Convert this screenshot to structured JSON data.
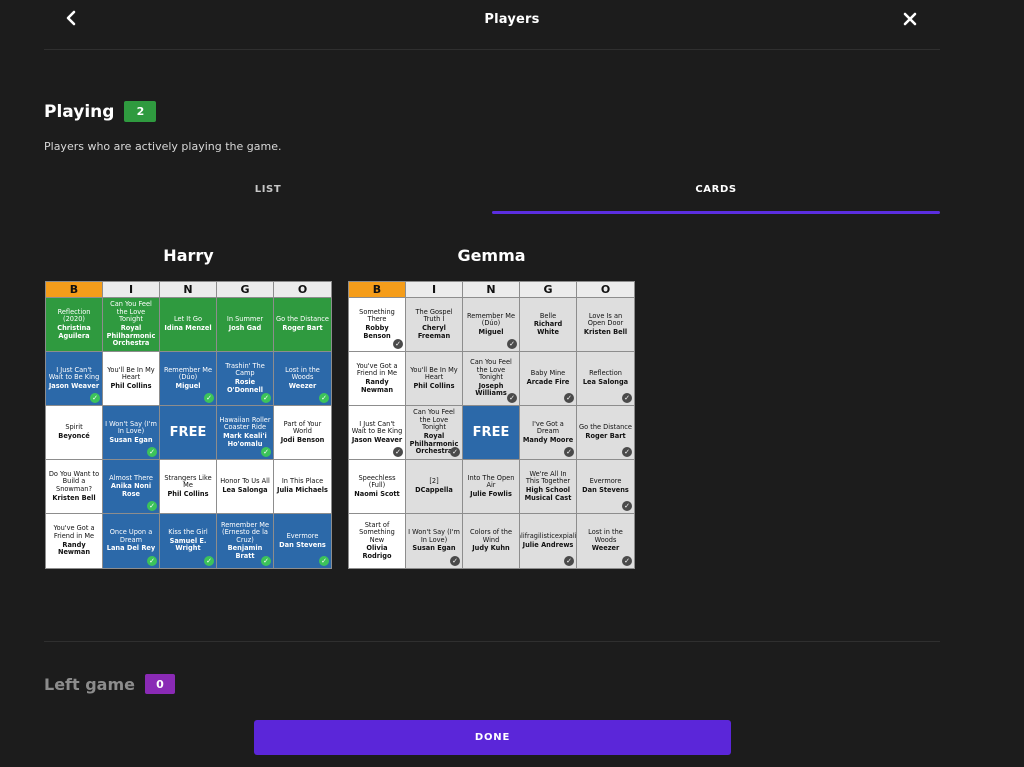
{
  "header": {
    "title": "Players",
    "back_icon": "chevron-left-icon",
    "close_icon": "close-icon"
  },
  "playing": {
    "title": "Playing",
    "count": "2",
    "badge_color": "#2f9a3f",
    "subtitle": "Players who are actively playing the game."
  },
  "tabs": [
    {
      "label": "LIST",
      "active": false
    },
    {
      "label": "CARDS",
      "active": true
    }
  ],
  "accent_color": "#5b2ee0",
  "cards": [
    {
      "player": "Harry",
      "letters": [
        "B",
        "I",
        "N",
        "G",
        "O"
      ],
      "highlighted_letter": "B",
      "cells": [
        {
          "song": "Reflection (2020)",
          "artist": "Christina Aguilera",
          "color": "green",
          "check": false
        },
        {
          "song": "Can You Feel the Love Tonight",
          "artist": "Royal Philharmonic Orchestra",
          "color": "green",
          "check": false
        },
        {
          "song": "Let It Go",
          "artist": "Idina Menzel",
          "color": "green",
          "check": false
        },
        {
          "song": "In Summer",
          "artist": "Josh Gad",
          "color": "green",
          "check": false
        },
        {
          "song": "Go the Distance",
          "artist": "Roger Bart",
          "color": "green",
          "check": false
        },
        {
          "song": "I Just Can't Wait to Be King",
          "artist": "Jason Weaver",
          "color": "blue",
          "check": true
        },
        {
          "song": "You'll Be In My Heart",
          "artist": "Phil Collins",
          "color": "white",
          "check": false
        },
        {
          "song": "Remember Me (Dúo)",
          "artist": "Miguel",
          "color": "blue",
          "check": true
        },
        {
          "song": "Trashin' The Camp",
          "artist": "Rosie O'Donnell",
          "color": "blue",
          "check": true
        },
        {
          "song": "Lost in the Woods",
          "artist": "Weezer",
          "color": "blue",
          "check": true
        },
        {
          "song": "Spirit",
          "artist": "Beyoncé",
          "color": "white",
          "check": false
        },
        {
          "song": "I Won't Say (I'm In Love)",
          "artist": "Susan Egan",
          "color": "blue",
          "check": true
        },
        {
          "song": "",
          "artist": "",
          "free": "FREE",
          "color": "blue",
          "check": false
        },
        {
          "song": "Hawaiian Roller Coaster Ride",
          "artist": "Mark Keali'i Ho'omalu",
          "color": "blue",
          "check": true
        },
        {
          "song": "Part of Your World",
          "artist": "Jodi Benson",
          "color": "white",
          "check": false
        },
        {
          "song": "Do You Want to Build a Snowman?",
          "artist": "Kristen Bell",
          "color": "white",
          "check": false
        },
        {
          "song": "Almost There",
          "artist": "Anika Noni Rose",
          "color": "blue",
          "check": true
        },
        {
          "song": "Strangers Like Me",
          "artist": "Phil Collins",
          "color": "white",
          "check": false
        },
        {
          "song": "Honor To Us All",
          "artist": "Lea Salonga",
          "color": "white",
          "check": false
        },
        {
          "song": "In This Place",
          "artist": "Julia Michaels",
          "color": "white",
          "check": false
        },
        {
          "song": "You've Got a Friend in Me",
          "artist": "Randy Newman",
          "color": "white",
          "check": false
        },
        {
          "song": "Once Upon a Dream",
          "artist": "Lana Del Rey",
          "color": "blue",
          "check": true
        },
        {
          "song": "Kiss the Girl",
          "artist": "Samuel E. Wright",
          "color": "blue",
          "check": true
        },
        {
          "song": "Remember Me (Ernesto de la Cruz)",
          "artist": "Benjamin Bratt",
          "color": "blue",
          "check": true
        },
        {
          "song": "Evermore",
          "artist": "Dan Stevens",
          "color": "blue",
          "check": true
        }
      ]
    },
    {
      "player": "Gemma",
      "letters": [
        "B",
        "I",
        "N",
        "G",
        "O"
      ],
      "highlighted_letter": "B",
      "cells": [
        {
          "song": "Something There",
          "artist": "Robby Benson",
          "color": "white",
          "check": true
        },
        {
          "song": "The Gospel Truth I",
          "artist": "Cheryl Freeman",
          "color": "grey",
          "check": false
        },
        {
          "song": "Remember Me (Dúo)",
          "artist": "Miguel",
          "color": "grey",
          "check": true
        },
        {
          "song": "Belle",
          "artist": "Richard White",
          "color": "grey",
          "check": false
        },
        {
          "song": "Love Is an Open Door",
          "artist": "Kristen Bell",
          "color": "grey",
          "check": false
        },
        {
          "song": "You've Got a Friend in Me",
          "artist": "Randy Newman",
          "color": "white",
          "check": false
        },
        {
          "song": "You'll Be In My Heart",
          "artist": "Phil Collins",
          "color": "grey",
          "check": false
        },
        {
          "song": "Can You Feel the Love Tonight",
          "artist": "Joseph Williams",
          "color": "grey",
          "check": true
        },
        {
          "song": "Baby Mine",
          "artist": "Arcade Fire",
          "color": "grey",
          "check": true
        },
        {
          "song": "Reflection",
          "artist": "Lea Salonga",
          "color": "grey",
          "check": true
        },
        {
          "song": "I Just Can't Wait to Be King",
          "artist": "Jason Weaver",
          "color": "white",
          "check": true
        },
        {
          "song": "Can You Feel the Love Tonight",
          "artist": "Royal Philharmonic Orchestra",
          "color": "grey",
          "check": true
        },
        {
          "song": "",
          "artist": "",
          "free": "FREE",
          "color": "blue",
          "check": false
        },
        {
          "song": "I've Got a Dream",
          "artist": "Mandy Moore",
          "color": "grey",
          "check": true
        },
        {
          "song": "Go the Distance",
          "artist": "Roger Bart",
          "color": "grey",
          "check": true
        },
        {
          "song": "Speechless (Full)",
          "artist": "Naomi Scott",
          "color": "white",
          "check": false
        },
        {
          "song": "[2]",
          "artist": "DCappella",
          "color": "grey",
          "check": false
        },
        {
          "song": "Into The Open Air",
          "artist": "Julie Fowlis",
          "color": "grey",
          "check": false
        },
        {
          "song": "We're All In This Together",
          "artist": "High School Musical Cast",
          "color": "grey",
          "check": false
        },
        {
          "song": "Evermore",
          "artist": "Dan Stevens",
          "color": "grey",
          "check": true
        },
        {
          "song": "Start of Something New",
          "artist": "Olivia Rodrigo",
          "color": "white",
          "check": false
        },
        {
          "song": "I Won't Say (I'm In Love)",
          "artist": "Susan Egan",
          "color": "grey",
          "check": true
        },
        {
          "song": "Colors of the Wind",
          "artist": "Judy Kuhn",
          "color": "grey",
          "check": false
        },
        {
          "song": "Supercalifragilisticexpialidocious",
          "artist": "Julie Andrews",
          "color": "grey",
          "check": true
        },
        {
          "song": "Lost in the Woods",
          "artist": "Weezer",
          "color": "grey",
          "check": true
        }
      ]
    }
  ],
  "left_game": {
    "title": "Left game",
    "count": "0",
    "badge_color": "#8a2ab5"
  },
  "done_label": "DONE"
}
